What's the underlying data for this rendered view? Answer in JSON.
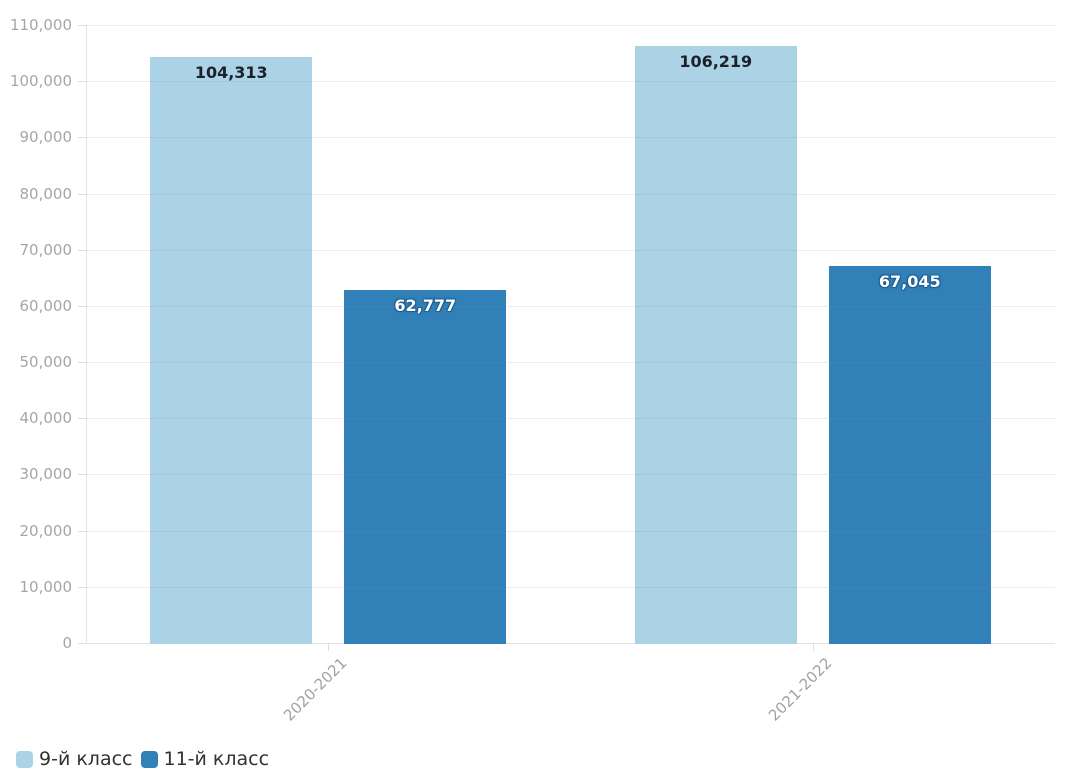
{
  "chart_data": {
    "type": "bar",
    "title": "",
    "xlabel": "",
    "ylabel": "",
    "categories": [
      "2020-2021",
      "2021-2022"
    ],
    "series": [
      {
        "name": "9-й класс",
        "color": "#acd2e6",
        "values": [
          104313,
          106219
        ],
        "value_labels": [
          "104,313",
          "106,219"
        ],
        "label_color": "#1d2129",
        "label_outlined": false
      },
      {
        "name": "11-й класс",
        "color": "#3181b8",
        "values": [
          62777,
          67045
        ],
        "value_labels": [
          "62,777",
          "67,045"
        ],
        "label_color": "#ffffff",
        "label_outlined": true
      }
    ],
    "ylim": [
      0,
      110000
    ],
    "y_ticks": [
      0,
      10000,
      20000,
      30000,
      40000,
      50000,
      60000,
      70000,
      80000,
      90000,
      100000,
      110000
    ],
    "y_tick_labels": [
      "0",
      "10,000",
      "20,000",
      "30,000",
      "40,000",
      "50,000",
      "60,000",
      "70,000",
      "80,000",
      "90,000",
      "100,000",
      "110,000"
    ],
    "grid": true,
    "legend_position": "bottom-left"
  },
  "legend": {
    "items": [
      {
        "label": "9-й класс",
        "color": "#acd2e6"
      },
      {
        "label": "11-й класс",
        "color": "#3181b8"
      }
    ]
  },
  "colors": {
    "background": "#ffffff",
    "grid": "#ececec",
    "axis": "#e2e2e2",
    "tick_label": "#a6a6a6",
    "legend_text": "#333333"
  }
}
